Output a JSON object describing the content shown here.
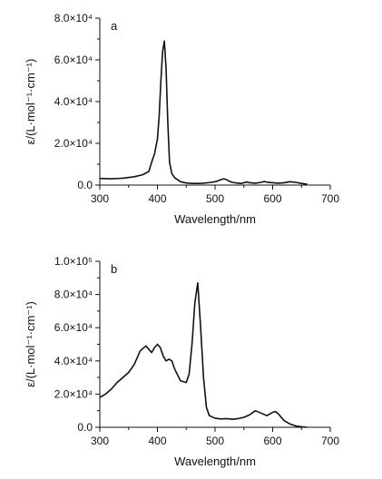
{
  "chart_data": [
    {
      "type": "line",
      "panel_label": "a",
      "xlabel": "Wavelength/nm",
      "ylabel": "ε/(L·mol⁻¹·cm⁻¹)",
      "xlim": [
        300,
        700
      ],
      "ylim": [
        0,
        80000
      ],
      "x_ticks": [
        300,
        400,
        500,
        600,
        700
      ],
      "x_tick_labels": [
        "300",
        "400",
        "500",
        "600",
        "700"
      ],
      "y_ticks": [
        0,
        20000,
        40000,
        60000,
        80000
      ],
      "y_tick_labels": [
        "0.0",
        "2.0×10⁴",
        "4.0×10⁴",
        "6.0×10⁴",
        "8.0×10⁴"
      ],
      "grid": false,
      "series": [
        {
          "x": [
            300,
            320,
            340,
            360,
            375,
            385,
            390,
            395,
            400,
            403,
            406,
            409,
            412,
            415,
            418,
            421,
            425,
            430,
            440,
            450,
            460,
            470,
            480,
            490,
            500,
            505,
            510,
            515,
            520,
            525,
            530,
            540,
            545,
            550,
            555,
            560,
            570,
            580,
            585,
            590,
            600,
            610,
            620,
            630,
            640,
            650,
            660
          ],
          "y": [
            3200,
            3000,
            3300,
            4000,
            5000,
            6500,
            11000,
            15000,
            22000,
            33000,
            50000,
            64000,
            69000,
            56000,
            30000,
            11000,
            5500,
            3500,
            1600,
            1000,
            800,
            800,
            900,
            1200,
            1600,
            2000,
            2600,
            3000,
            2600,
            1800,
            1300,
            900,
            800,
            1100,
            1500,
            1100,
            900,
            1300,
            1700,
            1400,
            1100,
            900,
            1100,
            1600,
            1300,
            800,
            400
          ]
        }
      ]
    },
    {
      "type": "line",
      "panel_label": "b",
      "xlabel": "Wavelength/nm",
      "ylabel": "ε/(L·mol⁻¹·cm⁻¹)",
      "xlim": [
        300,
        700
      ],
      "ylim": [
        0,
        100000
      ],
      "x_ticks": [
        300,
        400,
        500,
        600,
        700
      ],
      "x_tick_labels": [
        "300",
        "400",
        "500",
        "600",
        "700"
      ],
      "y_ticks": [
        0,
        20000,
        40000,
        60000,
        80000,
        100000
      ],
      "y_tick_labels": [
        "0.0",
        "2.0×10⁴",
        "4.0×10⁴",
        "6.0×10⁴",
        "8.0×10⁴",
        "1.0×10⁵"
      ],
      "grid": false,
      "series": [
        {
          "x": [
            300,
            310,
            320,
            330,
            340,
            350,
            360,
            370,
            380,
            385,
            390,
            395,
            400,
            405,
            410,
            415,
            420,
            425,
            430,
            440,
            450,
            455,
            460,
            465,
            470,
            475,
            480,
            485,
            490,
            500,
            510,
            520,
            530,
            540,
            550,
            560,
            570,
            580,
            590,
            600,
            605,
            610,
            620,
            630,
            640,
            650,
            660
          ],
          "y": [
            18000,
            20000,
            23000,
            27000,
            30000,
            33000,
            38000,
            46000,
            49000,
            47000,
            45000,
            48000,
            50000,
            48000,
            43000,
            40000,
            41000,
            40000,
            35000,
            28000,
            27000,
            32000,
            50000,
            75000,
            87000,
            60000,
            30000,
            12000,
            7000,
            5500,
            5000,
            5200,
            4800,
            5200,
            6000,
            7500,
            10000,
            8500,
            7000,
            9000,
            9500,
            8000,
            4000,
            2000,
            800,
            300,
            0
          ]
        }
      ]
    }
  ]
}
